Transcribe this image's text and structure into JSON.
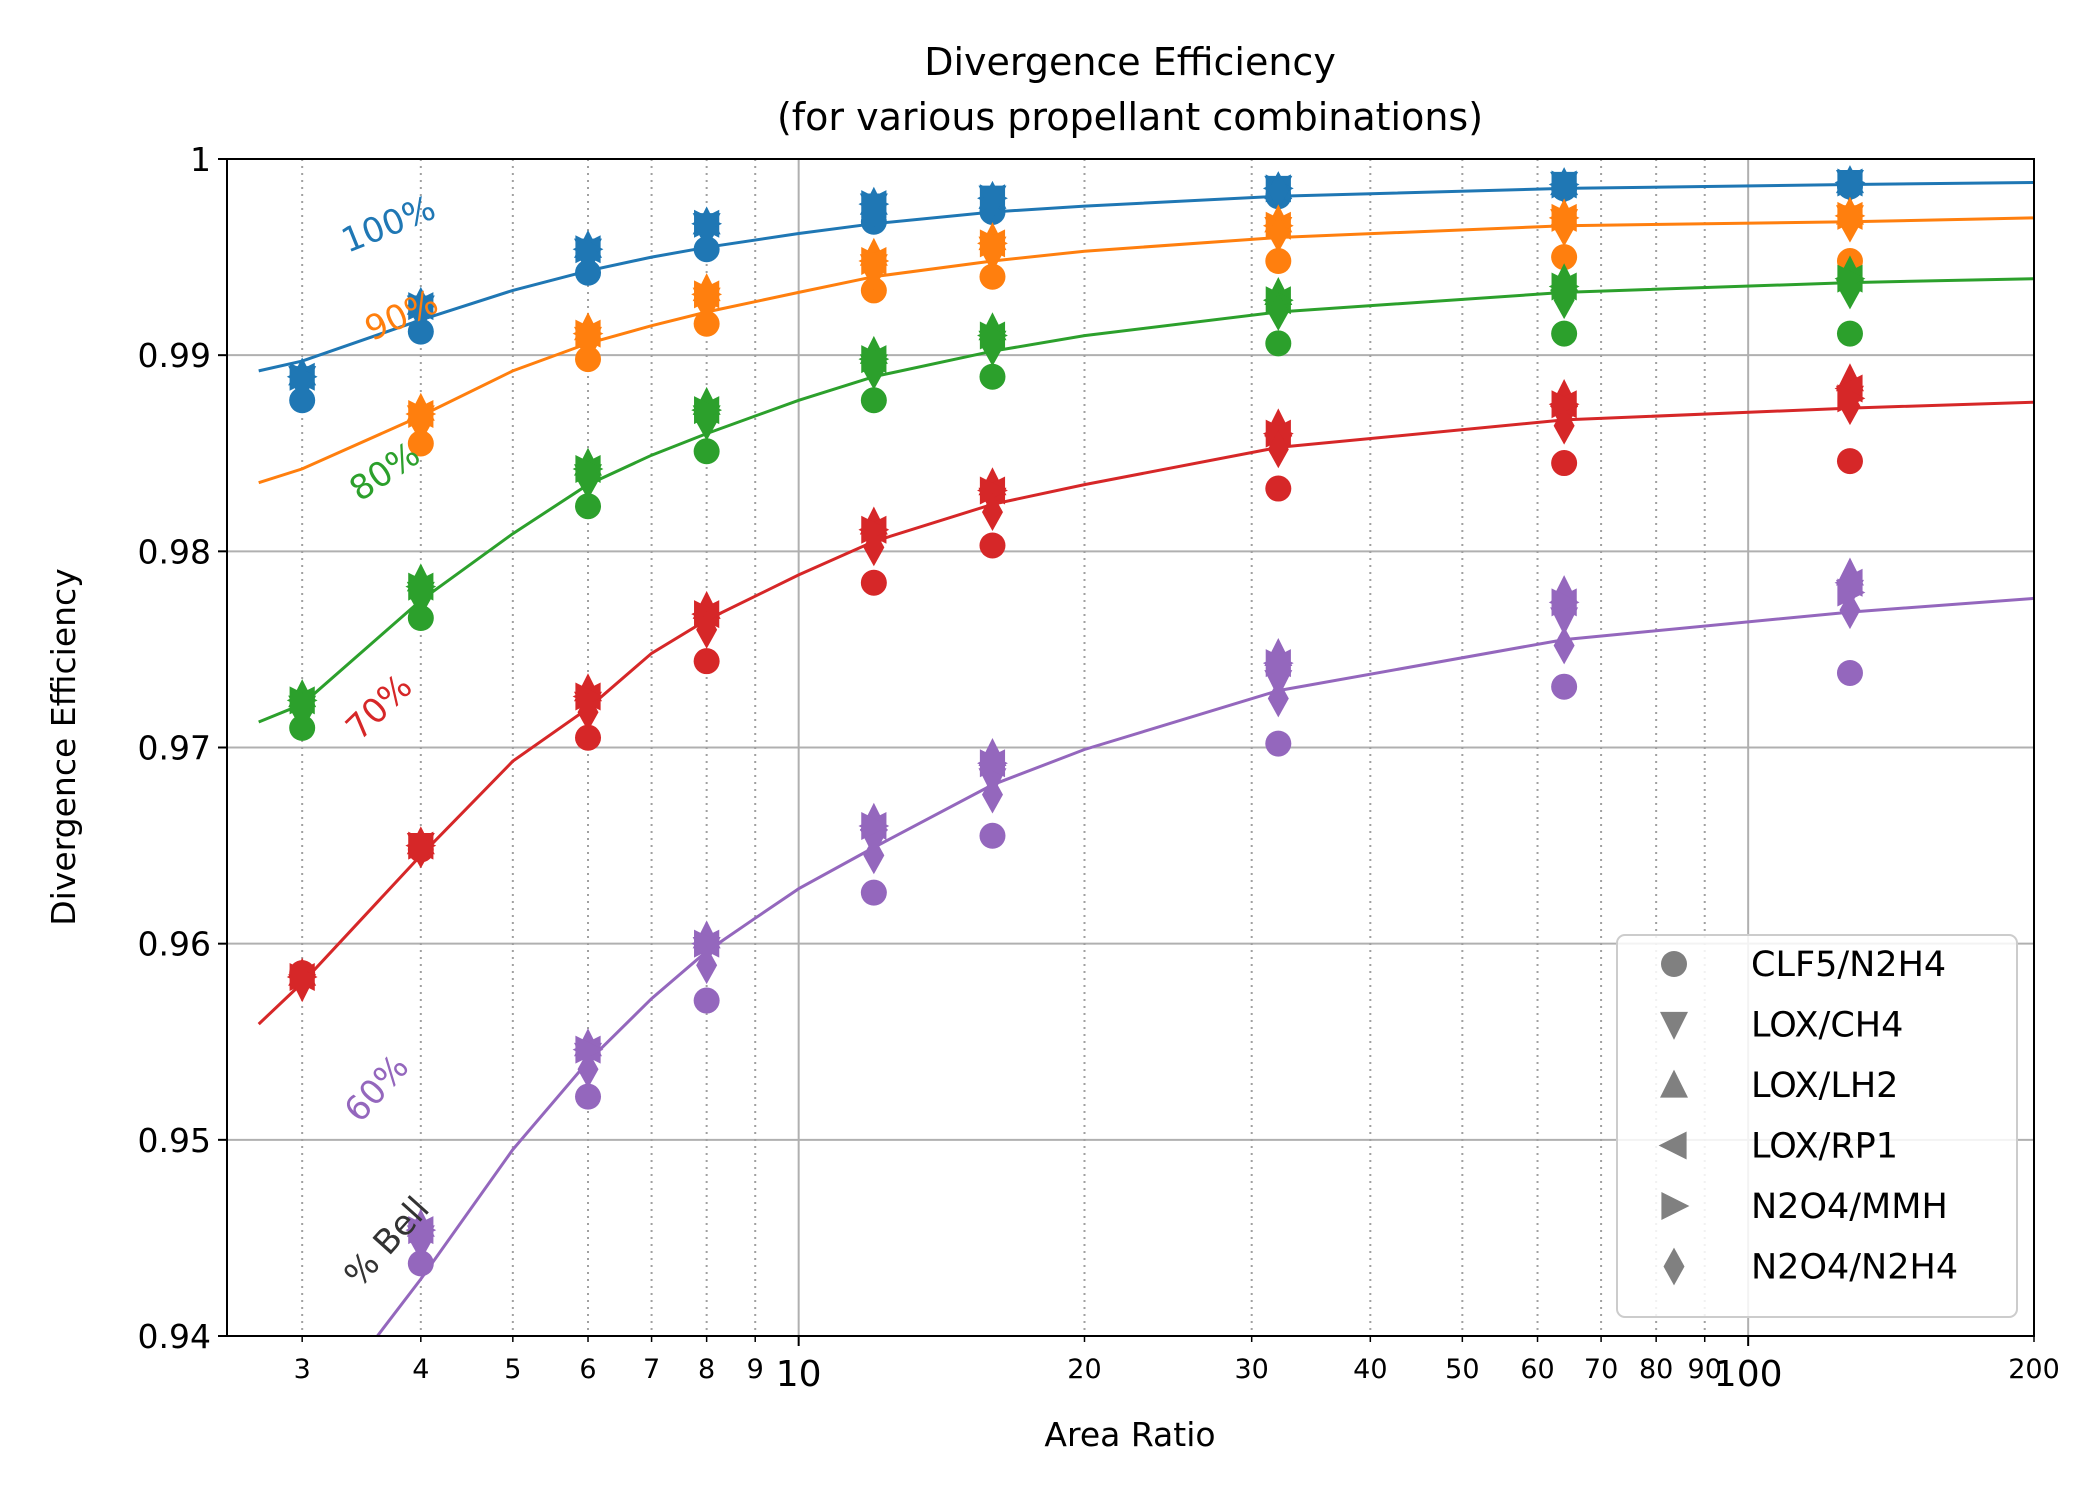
{
  "chart_data": {
    "type": "scatter",
    "title": "Divergence Efficiency",
    "subtitle": "(for various propellant combinations)",
    "xlabel": "Area Ratio",
    "ylabel": "Divergence Efficiency",
    "xscale": "log",
    "xlim": [
      2.5,
      200
    ],
    "ylim": [
      0.94,
      1.0
    ],
    "grid": true,
    "x_major_ticks": [
      10,
      100
    ],
    "x_major_tick_labels": [
      "10",
      "100"
    ],
    "x_minor_ticks": [
      3,
      4,
      5,
      6,
      7,
      8,
      9,
      20,
      30,
      40,
      50,
      60,
      70,
      80,
      90,
      200
    ],
    "x_minor_tick_labels": [
      "3",
      "4",
      "5",
      "6",
      "7",
      "8",
      "9",
      "20",
      "30",
      "40",
      "50",
      "60",
      "70",
      "80",
      "90",
      "200"
    ],
    "y_ticks": [
      0.94,
      0.95,
      0.96,
      0.97,
      0.98,
      0.99,
      1.0
    ],
    "y_tick_labels": [
      "0.94",
      "0.95",
      "0.96",
      "0.97",
      "0.98",
      "0.99",
      "1"
    ],
    "legend_position": "lower-right",
    "legend": [
      {
        "marker": "circle",
        "label": "CLF5/N2H4"
      },
      {
        "marker": "triangle-down",
        "label": "LOX/CH4"
      },
      {
        "marker": "triangle-up",
        "label": "LOX/LH2"
      },
      {
        "marker": "triangle-left",
        "label": "LOX/RP1"
      },
      {
        "marker": "triangle-right",
        "label": "N2O4/MMH"
      },
      {
        "marker": "diamond",
        "label": "N2O4/N2H4"
      }
    ],
    "curve_group_label": "% Bell",
    "curves": [
      {
        "label": "100%",
        "color": "#1f77b4",
        "x": [
          2.7,
          3,
          4,
          5,
          6,
          7,
          8,
          10,
          12,
          16,
          20,
          32,
          64,
          128,
          200
        ],
        "y": [
          0.9892,
          0.9897,
          0.9918,
          0.9933,
          0.9943,
          0.995,
          0.9955,
          0.9962,
          0.9967,
          0.9973,
          0.9976,
          0.9981,
          0.9985,
          0.9987,
          0.9988
        ],
        "points_x": [
          3,
          4,
          6,
          8,
          12,
          16,
          32,
          64,
          128
        ],
        "points": {
          "CLF5/N2H4": [
            0.9877,
            0.9912,
            0.9942,
            0.9954,
            0.9968,
            0.9973,
            0.9981,
            0.9985,
            0.9986
          ],
          "LOX/CH4": [
            0.9888,
            0.9924,
            0.9953,
            0.9966,
            0.9976,
            0.998,
            0.9985,
            0.9987,
            0.9988
          ],
          "LOX/LH2": [
            0.9891,
            0.9927,
            0.9956,
            0.9968,
            0.9978,
            0.9981,
            0.9986,
            0.9988,
            0.9989
          ],
          "LOX/RP1": [
            0.9889,
            0.9925,
            0.9954,
            0.9967,
            0.9977,
            0.998,
            0.9985,
            0.9987,
            0.9988
          ],
          "N2O4/MMH": [
            0.9889,
            0.9925,
            0.9954,
            0.9967,
            0.9977,
            0.998,
            0.9985,
            0.9987,
            0.9988
          ],
          "N2O4/N2H4": [
            0.9886,
            0.9922,
            0.9951,
            0.9964,
            0.9975,
            0.9979,
            0.9984,
            0.9986,
            0.9987
          ]
        }
      },
      {
        "label": "90%",
        "color": "#ff7f0e",
        "x": [
          2.7,
          3,
          4,
          5,
          6,
          7,
          8,
          10,
          12,
          16,
          20,
          32,
          64,
          128,
          200
        ],
        "y": [
          0.9835,
          0.9842,
          0.9869,
          0.9892,
          0.9906,
          0.9915,
          0.9922,
          0.9932,
          0.994,
          0.9948,
          0.9953,
          0.996,
          0.9966,
          0.9968,
          0.997
        ],
        "points_x": [
          4,
          6,
          8,
          12,
          16,
          32,
          64,
          128
        ],
        "points": {
          "CLF5/N2H4": [
            0.9855,
            0.9898,
            0.9916,
            0.9933,
            0.994,
            0.9948,
            0.995,
            0.9948
          ],
          "LOX/CH4": [
            0.9868,
            0.9908,
            0.9928,
            0.9945,
            0.9954,
            0.9964,
            0.9968,
            0.997
          ],
          "LOX/LH2": [
            0.9873,
            0.9914,
            0.9934,
            0.9952,
            0.996,
            0.9969,
            0.9972,
            0.9973
          ],
          "LOX/RP1": [
            0.987,
            0.9911,
            0.9931,
            0.9948,
            0.9957,
            0.9966,
            0.997,
            0.9971
          ],
          "N2O4/MMH": [
            0.987,
            0.9911,
            0.9931,
            0.9948,
            0.9957,
            0.9966,
            0.997,
            0.9971
          ],
          "N2O4/N2H4": [
            0.9865,
            0.9906,
            0.9926,
            0.9943,
            0.9952,
            0.9962,
            0.9965,
            0.9967
          ]
        }
      },
      {
        "label": "80%",
        "color": "#2ca02c",
        "x": [
          2.7,
          3,
          4,
          5,
          6,
          7,
          8,
          10,
          12,
          16,
          20,
          32,
          64,
          128,
          200
        ],
        "y": [
          0.9713,
          0.9722,
          0.9775,
          0.9809,
          0.9834,
          0.9849,
          0.986,
          0.9877,
          0.9889,
          0.9902,
          0.991,
          0.9922,
          0.9932,
          0.9937,
          0.9939
        ],
        "points_x": [
          3,
          4,
          6,
          8,
          12,
          16,
          32,
          64,
          128
        ],
        "points": {
          "CLF5/N2H4": [
            0.971,
            0.9766,
            0.9823,
            0.9851,
            0.9877,
            0.9889,
            0.9906,
            0.9911,
            0.9911
          ],
          "LOX/CH4": [
            0.972,
            0.9778,
            0.9838,
            0.9868,
            0.9894,
            0.9906,
            0.9922,
            0.9927,
            0.9932
          ],
          "LOX/LH2": [
            0.9727,
            0.9786,
            0.9845,
            0.9876,
            0.9902,
            0.9914,
            0.9932,
            0.9939,
            0.9943
          ],
          "LOX/RP1": [
            0.9724,
            0.9782,
            0.9842,
            0.9872,
            0.9898,
            0.991,
            0.9928,
            0.9935,
            0.9939
          ],
          "N2O4/MMH": [
            0.9724,
            0.9782,
            0.9842,
            0.9872,
            0.9898,
            0.991,
            0.9928,
            0.9935,
            0.9939
          ],
          "N2O4/N2H4": [
            0.9718,
            0.9776,
            0.9836,
            0.9866,
            0.9892,
            0.9904,
            0.9922,
            0.9928,
            0.9933
          ]
        }
      },
      {
        "label": "70%",
        "color": "#d62728",
        "x": [
          2.7,
          3,
          4,
          5,
          6,
          7,
          8,
          10,
          12,
          16,
          20,
          32,
          64,
          128,
          200
        ],
        "y": [
          0.9559,
          0.958,
          0.9645,
          0.9693,
          0.972,
          0.9748,
          0.9765,
          0.9788,
          0.9805,
          0.9824,
          0.9834,
          0.9853,
          0.9867,
          0.9873,
          0.9876
        ],
        "points_x": [
          3,
          4,
          6,
          8,
          12,
          16,
          32,
          64,
          128
        ],
        "points": {
          "CLF5/N2H4": [
            0.9585,
            0.9648,
            0.9705,
            0.9744,
            0.9784,
            0.9803,
            0.9832,
            0.9845,
            0.9846
          ],
          "LOX/CH4": [
            0.9578,
            0.965,
            0.9722,
            0.9762,
            0.9805,
            0.9826,
            0.9853,
            0.9868,
            0.9878
          ],
          "LOX/LH2": [
            0.9585,
            0.9652,
            0.973,
            0.9772,
            0.9815,
            0.9835,
            0.9865,
            0.988,
            0.9888
          ],
          "LOX/RP1": [
            0.9583,
            0.965,
            0.9726,
            0.9768,
            0.9811,
            0.9831,
            0.986,
            0.9875,
            0.9883
          ],
          "N2O4/MMH": [
            0.9583,
            0.965,
            0.9726,
            0.9768,
            0.9811,
            0.9831,
            0.986,
            0.9875,
            0.9878
          ],
          "N2O4/N2H4": [
            0.9581,
            0.9648,
            0.9718,
            0.976,
            0.9802,
            0.982,
            0.9852,
            0.9864,
            0.9874
          ]
        }
      },
      {
        "label": "60%",
        "color": "#9467bd",
        "x": [
          3.6,
          4,
          5,
          6,
          7,
          8,
          9,
          10,
          12,
          16,
          20,
          32,
          64,
          128,
          200
        ],
        "y": [
          0.94,
          0.9429,
          0.9495,
          0.954,
          0.9572,
          0.9596,
          0.9613,
          0.9628,
          0.9649,
          0.9681,
          0.9699,
          0.9729,
          0.9755,
          0.9769,
          0.9776
        ],
        "points_x": [
          4,
          6,
          8,
          12,
          16,
          32,
          64,
          128
        ],
        "points": {
          "CLF5/N2H4": [
            0.9437,
            0.9522,
            0.9571,
            0.9626,
            0.9655,
            0.9702,
            0.9731,
            0.9738
          ],
          "LOX/CH4": [
            0.945,
            0.9543,
            0.9597,
            0.9652,
            0.9683,
            0.9733,
            0.9765,
            0.9779
          ],
          "LOX/LH2": [
            0.9457,
            0.9549,
            0.9604,
            0.9664,
            0.9697,
            0.9748,
            0.978,
            0.9789
          ],
          "LOX/RP1": [
            0.9454,
            0.9546,
            0.96,
            0.966,
            0.9692,
            0.9743,
            0.9774,
            0.9784
          ],
          "N2O4/MMH": [
            0.9454,
            0.9546,
            0.96,
            0.966,
            0.9692,
            0.9743,
            0.9774,
            0.9779
          ],
          "N2O4/N2H4": [
            0.9448,
            0.9536,
            0.9589,
            0.9645,
            0.9676,
            0.9725,
            0.9752,
            0.977
          ]
        }
      }
    ]
  }
}
